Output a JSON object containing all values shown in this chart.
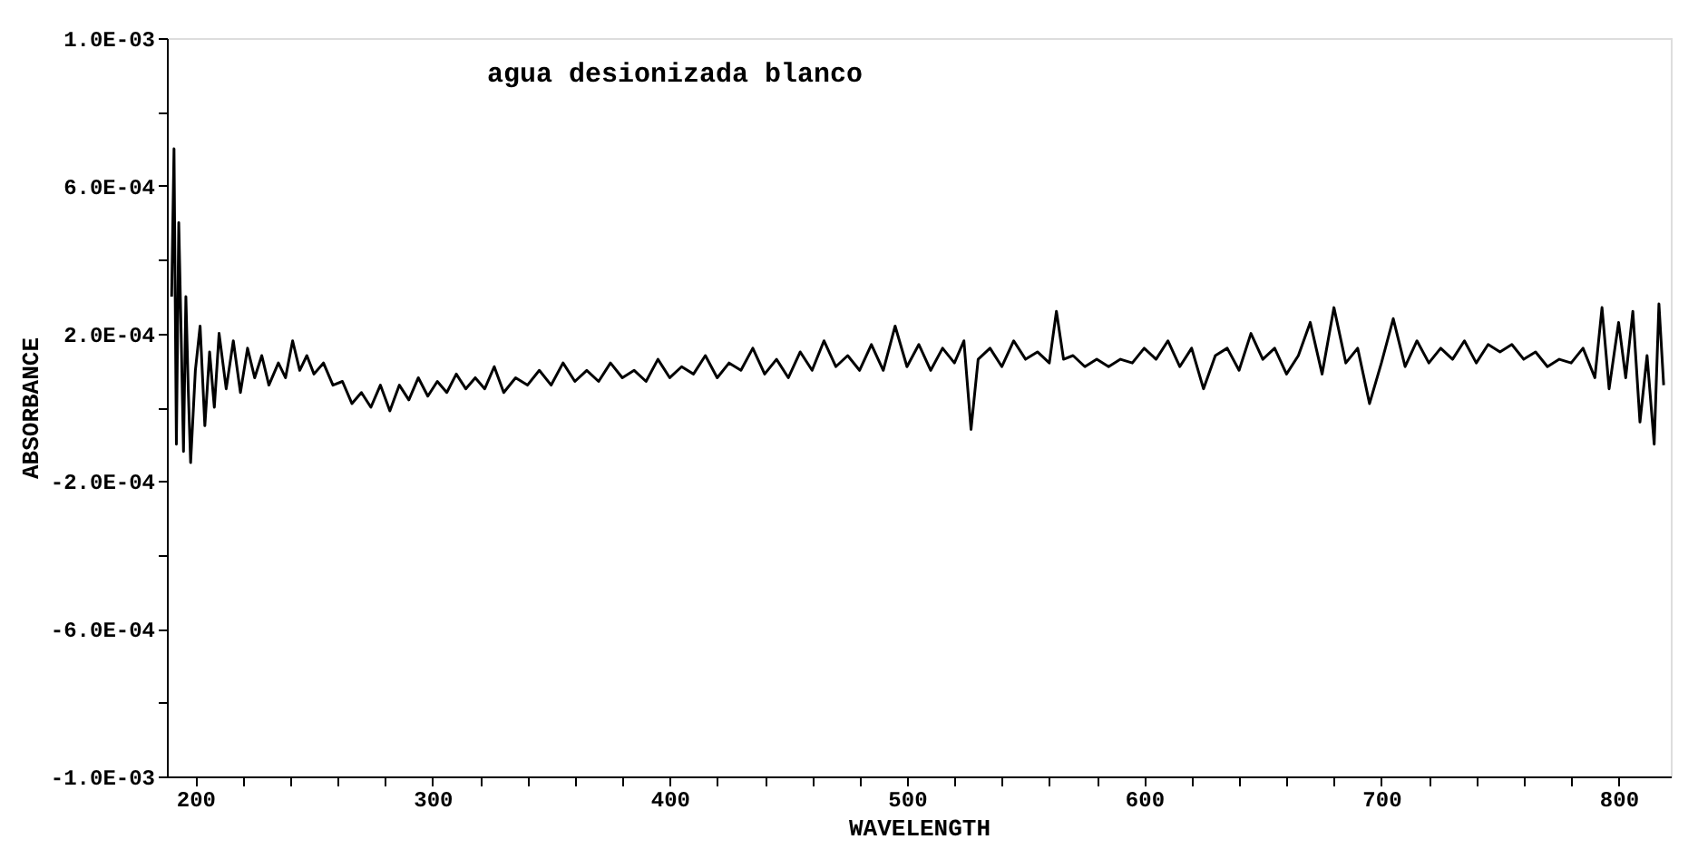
{
  "chart_data": {
    "type": "line",
    "xlabel": "WAVELENGTH",
    "ylabel": "ABSORBANCE",
    "annotations": [
      "agua desionizada blanco"
    ],
    "x": [
      190,
      191,
      192,
      193,
      194,
      195,
      196,
      197,
      198,
      200,
      202,
      204,
      206,
      208,
      210,
      213,
      216,
      219,
      222,
      225,
      228,
      231,
      235,
      238,
      241,
      244,
      247,
      250,
      254,
      258,
      262,
      266,
      270,
      274,
      278,
      282,
      286,
      290,
      294,
      298,
      302,
      306,
      310,
      314,
      318,
      322,
      326,
      330,
      335,
      340,
      345,
      350,
      355,
      360,
      365,
      370,
      375,
      380,
      385,
      390,
      395,
      400,
      405,
      410,
      415,
      420,
      425,
      430,
      435,
      440,
      445,
      450,
      455,
      460,
      465,
      470,
      475,
      480,
      485,
      490,
      495,
      500,
      505,
      510,
      515,
      520,
      524,
      527,
      530,
      535,
      540,
      545,
      550,
      555,
      560,
      563,
      566,
      570,
      575,
      580,
      585,
      590,
      595,
      600,
      605,
      610,
      615,
      620,
      625,
      630,
      635,
      640,
      645,
      650,
      655,
      660,
      665,
      670,
      675,
      680,
      685,
      690,
      695,
      700,
      705,
      710,
      715,
      720,
      725,
      730,
      735,
      740,
      745,
      750,
      755,
      760,
      765,
      770,
      775,
      780,
      785,
      790,
      793,
      796,
      800,
      803,
      806,
      809,
      812,
      815,
      817,
      819
    ],
    "series": [
      {
        "color": "#000000",
        "values": [
          0.0003,
          0.0007,
          -0.0001,
          0.0005,
          0.0002,
          -0.00012,
          0.0003,
          5e-05,
          -0.00015,
          0.0001,
          0.00022,
          -5e-05,
          0.00015,
          0.0,
          0.0002,
          5e-05,
          0.00018,
          4e-05,
          0.00016,
          8e-05,
          0.00014,
          6e-05,
          0.00012,
          8e-05,
          0.00018,
          0.0001,
          0.00014,
          9e-05,
          0.00012,
          6e-05,
          7e-05,
          1e-05,
          4e-05,
          0.0,
          6e-05,
          -1e-05,
          6e-05,
          2e-05,
          8e-05,
          3e-05,
          7e-05,
          4e-05,
          9e-05,
          5e-05,
          8e-05,
          5e-05,
          0.00011,
          4e-05,
          8e-05,
          6e-05,
          0.0001,
          6e-05,
          0.00012,
          7e-05,
          0.0001,
          7e-05,
          0.00012,
          8e-05,
          0.0001,
          7e-05,
          0.00013,
          8e-05,
          0.00011,
          9e-05,
          0.00014,
          8e-05,
          0.00012,
          0.0001,
          0.00016,
          9e-05,
          0.00013,
          8e-05,
          0.00015,
          0.0001,
          0.00018,
          0.00011,
          0.00014,
          0.0001,
          0.00017,
          0.0001,
          0.00022,
          0.00011,
          0.00017,
          0.0001,
          0.00016,
          0.00012,
          0.00018,
          -6e-05,
          0.00013,
          0.00016,
          0.00011,
          0.00018,
          0.00013,
          0.00015,
          0.00012,
          0.00026,
          0.00013,
          0.00014,
          0.00011,
          0.00013,
          0.00011,
          0.00013,
          0.00012,
          0.00016,
          0.00013,
          0.00018,
          0.00011,
          0.00016,
          5e-05,
          0.00014,
          0.00016,
          0.0001,
          0.0002,
          0.00013,
          0.00016,
          9e-05,
          0.00014,
          0.00023,
          9e-05,
          0.00027,
          0.00012,
          0.00016,
          1e-05,
          0.00012,
          0.00024,
          0.00011,
          0.00018,
          0.00012,
          0.00016,
          0.00013,
          0.00018,
          0.00012,
          0.00017,
          0.00015,
          0.00017,
          0.00013,
          0.00015,
          0.00011,
          0.00013,
          0.00012,
          0.00016,
          8e-05,
          0.00027,
          5e-05,
          0.00023,
          8e-05,
          0.00026,
          -4e-05,
          0.00014,
          -0.0001,
          0.00028,
          6e-05
        ]
      }
    ],
    "xlim": [
      188,
      822
    ],
    "xticks": [
      200,
      {
        "value": 220,
        "label": null
      },
      {
        "value": 240,
        "label": null
      },
      {
        "value": 260,
        "label": null
      },
      {
        "value": 280,
        "label": null
      },
      300,
      {
        "value": 320,
        "label": null
      },
      {
        "value": 340,
        "label": null
      },
      {
        "value": 360,
        "label": null
      },
      {
        "value": 380,
        "label": null
      },
      400,
      {
        "value": 420,
        "label": null
      },
      {
        "value": 440,
        "label": null
      },
      {
        "value": 460,
        "label": null
      },
      {
        "value": 480,
        "label": null
      },
      500,
      {
        "value": 520,
        "label": null
      },
      {
        "value": 540,
        "label": null
      },
      {
        "value": 560,
        "label": null
      },
      {
        "value": 580,
        "label": null
      },
      600,
      {
        "value": 620,
        "label": null
      },
      {
        "value": 640,
        "label": null
      },
      {
        "value": 660,
        "label": null
      },
      {
        "value": 680,
        "label": null
      },
      700,
      {
        "value": 720,
        "label": null
      },
      {
        "value": 740,
        "label": null
      },
      {
        "value": 760,
        "label": null
      },
      {
        "value": 780,
        "label": null
      },
      800
    ],
    "ylim": [
      -0.001,
      0.001
    ],
    "yticks": [
      {
        "value": 0.001,
        "label": "1.0E-03"
      },
      {
        "value": 0.0008,
        "label": null
      },
      {
        "value": 0.0006,
        "label": "6.0E-04"
      },
      {
        "value": 0.0004,
        "label": null
      },
      {
        "value": 0.0002,
        "label": "2.0E-04"
      },
      {
        "value": 0,
        "label": null
      },
      {
        "value": -0.0002,
        "label": "-2.0E-04"
      },
      {
        "value": -0.0004,
        "label": null
      },
      {
        "value": -0.0006,
        "label": "-6.0E-04"
      },
      {
        "value": -0.0008,
        "label": null
      },
      {
        "value": -0.001,
        "label": "-1.0E-03"
      }
    ],
    "grid": false,
    "marker": "none",
    "line_style": "solid"
  }
}
